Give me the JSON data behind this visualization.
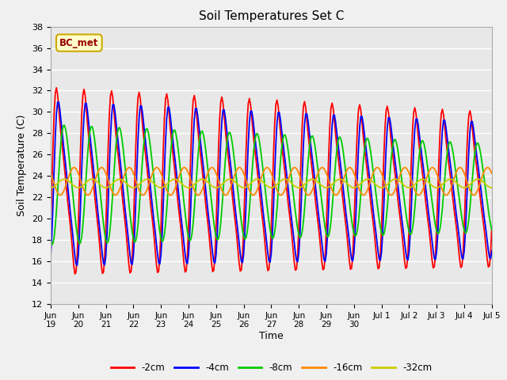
{
  "title": "Soil Temperatures Set C",
  "xlabel": "Time",
  "ylabel": "Soil Temperature (C)",
  "ylim": [
    12,
    38
  ],
  "yticks": [
    12,
    14,
    16,
    18,
    20,
    22,
    24,
    26,
    28,
    30,
    32,
    34,
    36,
    38
  ],
  "annotation_text": "BC_met",
  "annotation_bg": "#ffffcc",
  "annotation_border": "#ccaa00",
  "annotation_text_color": "#990000",
  "colors": {
    "-2cm": "#ff0000",
    "-4cm": "#0000ff",
    "-8cm": "#00cc00",
    "-16cm": "#ff8800",
    "-32cm": "#cccc00"
  },
  "fig_facecolor": "#f0f0f0",
  "axes_facecolor": "#e8e8e8",
  "grid_color": "#ffffff",
  "line_width": 1.3,
  "legend_linestyle": "-"
}
